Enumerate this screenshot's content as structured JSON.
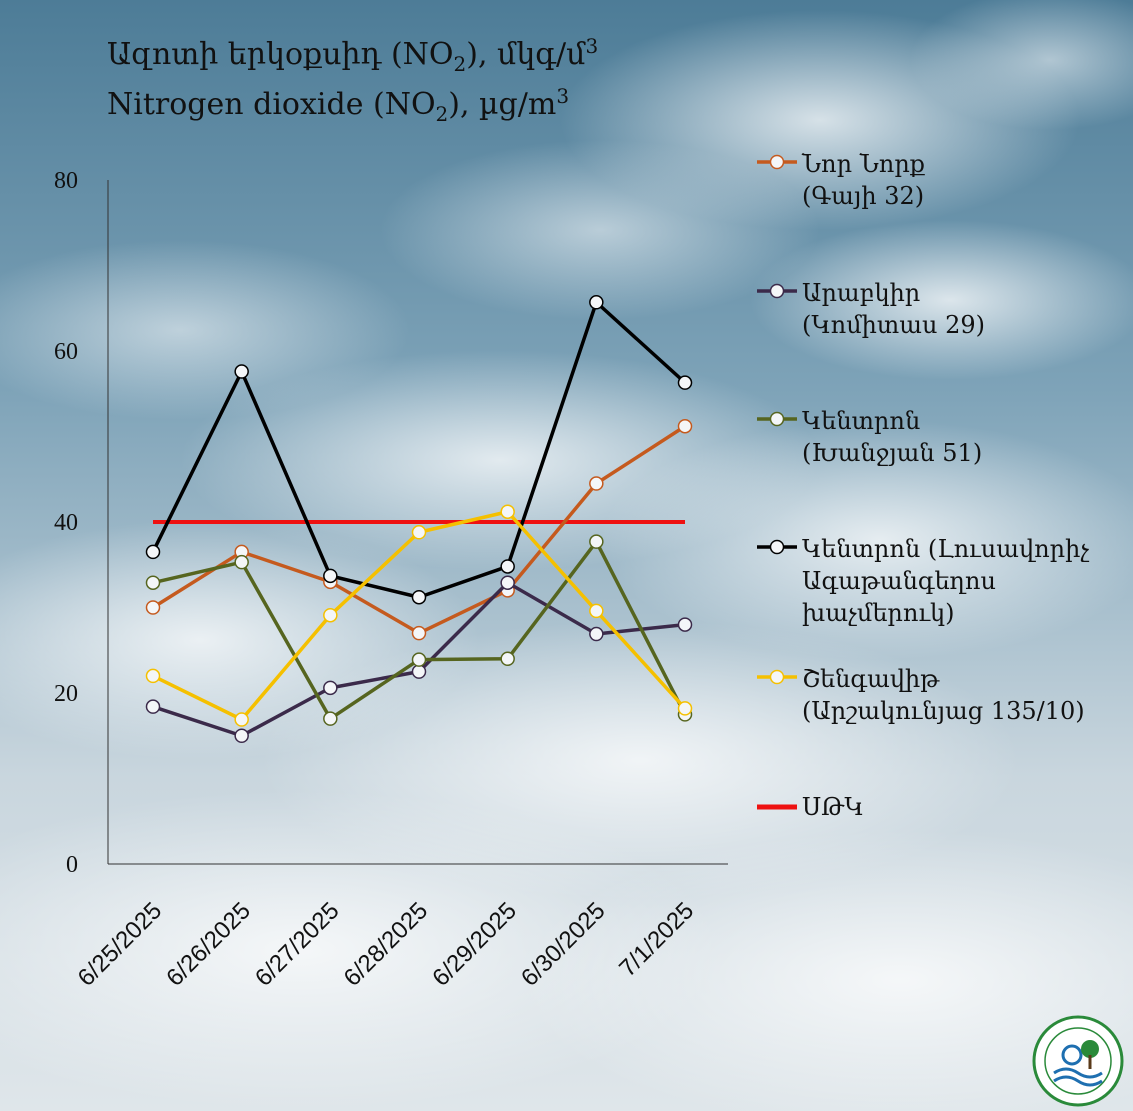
{
  "chart_data": {
    "type": "line",
    "title_line1": {
      "text": "Ազոտի  երկօքսիդ (NO",
      "sub": "2",
      "after": "), մկգ/մ",
      "sup": "3"
    },
    "title_line2": {
      "text": "Nitrogen  dioxide (NO",
      "sub": "2",
      "after": "), µg/m",
      "sup": "3"
    },
    "categories": [
      "6/25/2025",
      "6/26/2025",
      "6/27/2025",
      "6/28/2025",
      "6/29/2025",
      "6/30/2025",
      "7/1/2025"
    ],
    "y_ticks": [
      "0",
      "20",
      "40",
      "60",
      "80"
    ],
    "ylim": [
      0,
      80
    ],
    "grid": false,
    "legend_placement": "right",
    "series": [
      {
        "name": "Նոր Նորք (Գայի 32)",
        "legend_lines": [
          "Նոր Նորք",
          "(Գայի 32)"
        ],
        "color": "#c55a1e",
        "values": [
          30,
          36.5,
          33,
          27,
          32,
          44.5,
          51.2
        ]
      },
      {
        "name": "Արաբկիր (Կոմիտաս 29)",
        "legend_lines": [
          "Արաբկիր",
          "(Կոմիտաս 29)"
        ],
        "color": "#3b2a4a",
        "values": [
          18.4,
          15,
          20.6,
          22.5,
          32.9,
          26.9,
          28
        ]
      },
      {
        "name": "Կենտրոն (Խանջյան 51)",
        "legend_lines": [
          "Կենտրոն",
          "(Խանջյան 51)"
        ],
        "color": "#56651f",
        "values": [
          32.9,
          35.3,
          17,
          23.9,
          24,
          37.7,
          17.5
        ]
      },
      {
        "name": "Կենտրոն (Լուսավորիչ Ագաթանգեղոս խաչմերուկ)",
        "legend_lines": [
          "Կենտրոն (Լուսավորիչ",
          "Ագաթանգեղոս",
          "խաչմերուկ)"
        ],
        "color": "#000000",
        "values": [
          36.5,
          57.6,
          33.7,
          31.2,
          34.8,
          65.7,
          56.3
        ]
      },
      {
        "name": "Շենգավիթ (Արշակունյաց 135/10)",
        "legend_lines": [
          "Շենգավիթ",
          "(Արշակունյաց 135/10)"
        ],
        "color": "#f5c000",
        "values": [
          22,
          16.9,
          29.1,
          38.8,
          41.2,
          29.6,
          18.2
        ]
      }
    ],
    "threshold": {
      "name": "ՍԹԿ",
      "value": 40,
      "color": "#ee1111"
    }
  },
  "colors": {
    "marker_fill": "#f4f6f8"
  }
}
